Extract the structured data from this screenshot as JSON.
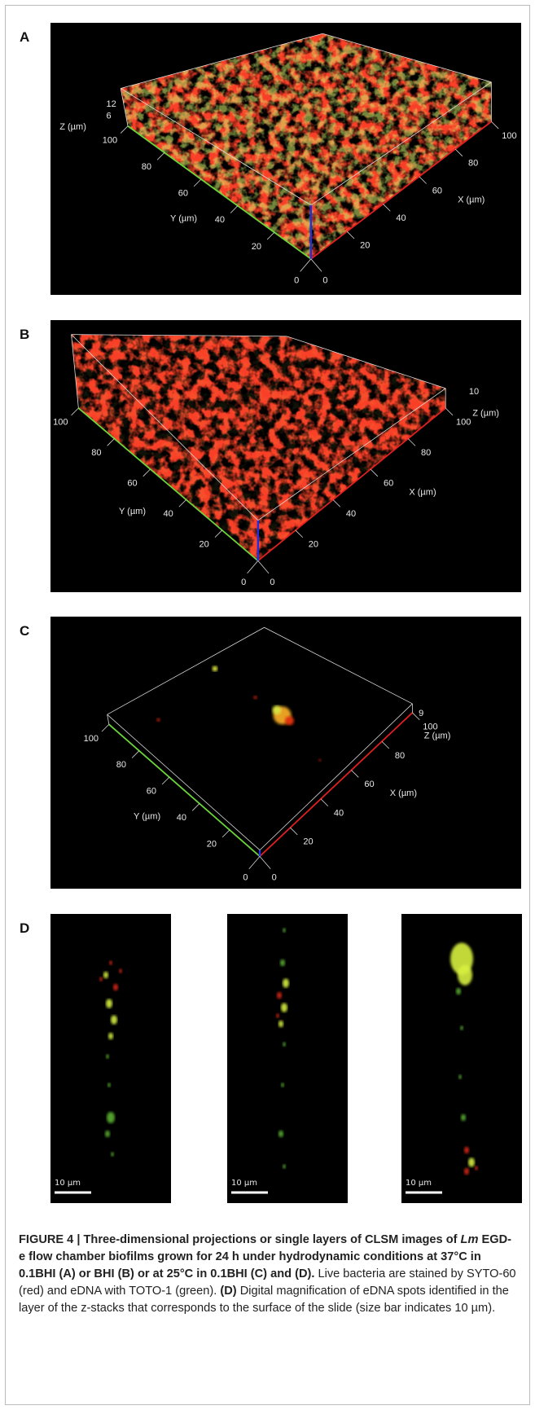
{
  "panels": [
    {
      "label": "A",
      "z_ticks": [
        "12",
        "6"
      ],
      "z_axis_label": "Z (µm)",
      "y_ticks": [
        "100",
        "80",
        "60",
        "40",
        "20"
      ],
      "x_ticks": [
        "20",
        "40",
        "60",
        "80",
        "100"
      ],
      "origin_labels": [
        "0",
        "0"
      ],
      "y_axis_label": "Y (µm)",
      "x_axis_label": "X (µm)"
    },
    {
      "label": "B",
      "z_ticks": [
        "10"
      ],
      "z_axis_label": "Z (µm)",
      "y_ticks": [
        "100",
        "80",
        "60",
        "40",
        "20"
      ],
      "x_ticks": [
        "20",
        "40",
        "60",
        "80",
        "100"
      ],
      "origin_labels": [
        "0",
        "0"
      ],
      "y_axis_label": "Y (µm)",
      "x_axis_label": "X (µm)"
    },
    {
      "label": "C",
      "z_ticks": [
        "9"
      ],
      "z_axis_label": "Z (µm)",
      "y_ticks": [
        "100",
        "80",
        "60",
        "40",
        "20"
      ],
      "x_ticks": [
        "20",
        "40",
        "60",
        "80",
        "100"
      ],
      "origin_labels": [
        "0",
        "0"
      ],
      "y_axis_label": "Y (µm)",
      "x_axis_label": "X (µm)"
    }
  ],
  "panel_d": {
    "label": "D",
    "scale_bars": [
      "10 µm",
      "10 µm",
      "10 µm"
    ]
  },
  "caption": {
    "bold_1": "FIGURE 4 | Three-dimensional projections or single layers of CLSM images of ",
    "italic": "Lm",
    "bold_2": " EGD-e flow chamber biofilms grown for 24 h under hydrodynamic conditions at 37°C in 0.1BHI (A) or BHI (B) or at 25°C in 0.1BHI (C) and (D).",
    "text_1": " Live bacteria are stained by SYTO-60 (red) and eDNA with TOTO-1 (green). ",
    "bold_3": "(D)",
    "text_2": " Digital magnification of eDNA spots identified in the layer of the z-stacks that corresponds to the surface of the slide (size bar indicates 10 µm)."
  }
}
